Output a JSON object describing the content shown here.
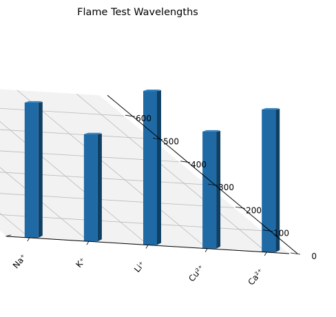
{
  "chart_data": {
    "type": "bar",
    "title": "Flame Test Wavelengths",
    "xlabel": "",
    "ylabel": "",
    "categories": [
      "Na⁺",
      "K⁺",
      "Li⁺",
      "Cu²⁺",
      "Ca²⁺"
    ],
    "values": [
      589,
      467,
      671,
      510,
      622
    ],
    "ylim": [
      0,
      690
    ],
    "yticks": [
      0,
      100,
      200,
      300,
      400,
      500,
      600
    ],
    "grid": true,
    "colors": {
      "bar": "#1f6aa5",
      "bar_side": "#0f3f63",
      "bar_top": "#2f7fc0",
      "pane": "#f2f2f2",
      "grid": "#b8b8b8"
    }
  }
}
